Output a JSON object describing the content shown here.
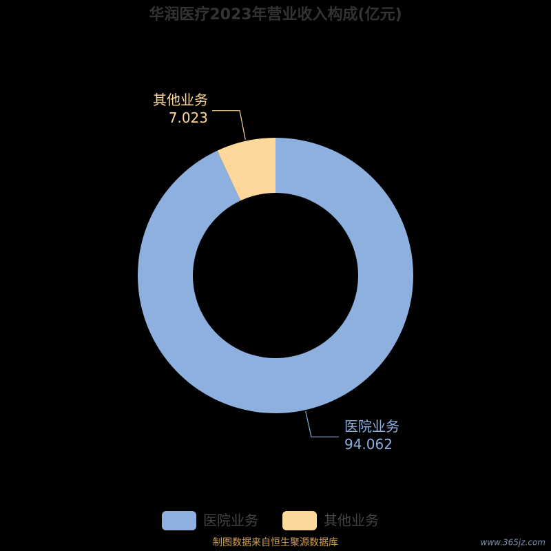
{
  "chart_data": {
    "type": "donut",
    "title": "华润医疗2023年营业收入构成(亿元)",
    "categories": [
      "医院业务",
      "其他业务"
    ],
    "values": [
      94.062,
      7.023
    ],
    "colors": [
      "#8eb0de",
      "#fdd89a"
    ],
    "source": "制图数据来自恒生聚源数据库",
    "watermark": "www.365jz.com"
  }
}
